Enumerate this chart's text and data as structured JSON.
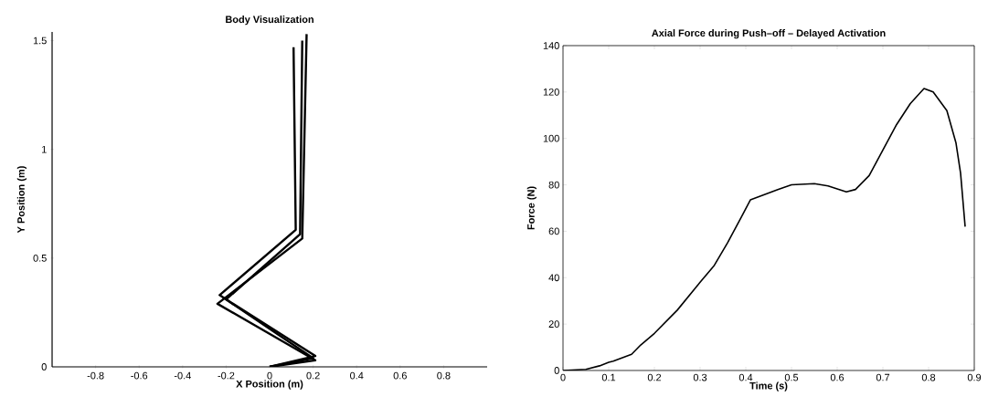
{
  "chart_data": [
    {
      "type": "line",
      "title": "Body Visualization",
      "xlabel": "X Position (m)",
      "ylabel": "Y Position (m)",
      "xlim": [
        -1.0,
        1.0
      ],
      "ylim": [
        0,
        1.54
      ],
      "xticks": [
        -0.8,
        -0.6,
        -0.4,
        -0.2,
        0,
        0.2,
        0.4,
        0.6,
        0.8
      ],
      "yticks": [
        0,
        0.5,
        1,
        1.5
      ],
      "grid": false,
      "series": [
        {
          "color": "#000000",
          "x": [
            0,
            0.2,
            -0.23,
            0.12,
            0.11
          ],
          "values": [
            0,
            0.04,
            0.33,
            0.63,
            1.47
          ]
        },
        {
          "color": "#000000",
          "x": [
            0,
            0.21,
            -0.2,
            0.14,
            0.15
          ],
          "values": [
            0,
            0.05,
            0.31,
            0.61,
            1.5
          ]
        },
        {
          "color": "#000000",
          "x": [
            0,
            0.21,
            -0.24,
            0.15,
            0.17
          ],
          "values": [
            0,
            0.03,
            0.29,
            0.59,
            1.53
          ]
        }
      ]
    },
    {
      "type": "line",
      "title": "Axial Force during Push–off – Delayed Activation",
      "xlabel": "Time (s)",
      "ylabel": "Force (N)",
      "xlim": [
        0,
        0.9
      ],
      "ylim": [
        0,
        140
      ],
      "xticks": [
        0,
        0.1,
        0.2,
        0.3,
        0.4,
        0.5,
        0.6,
        0.7,
        0.8,
        0.9
      ],
      "yticks": [
        0,
        20,
        40,
        60,
        80,
        100,
        120,
        140
      ],
      "grid": false,
      "series": [
        {
          "color": "#000000",
          "x": [
            0,
            0.05,
            0.08,
            0.1,
            0.11,
            0.15,
            0.17,
            0.2,
            0.25,
            0.3,
            0.33,
            0.36,
            0.39,
            0.41,
            0.43,
            0.47,
            0.5,
            0.55,
            0.58,
            0.62,
            0.64,
            0.67,
            0.7,
            0.73,
            0.76,
            0.79,
            0.81,
            0.84,
            0.86,
            0.87,
            0.88
          ],
          "values": [
            0,
            0.5,
            2,
            3.5,
            4,
            7,
            11,
            16,
            26,
            38,
            45,
            55,
            66,
            73.5,
            75,
            78,
            80,
            80.5,
            79.5,
            77,
            78,
            84,
            95,
            106,
            115,
            121.5,
            120,
            112,
            98,
            85,
            62
          ]
        }
      ]
    }
  ]
}
